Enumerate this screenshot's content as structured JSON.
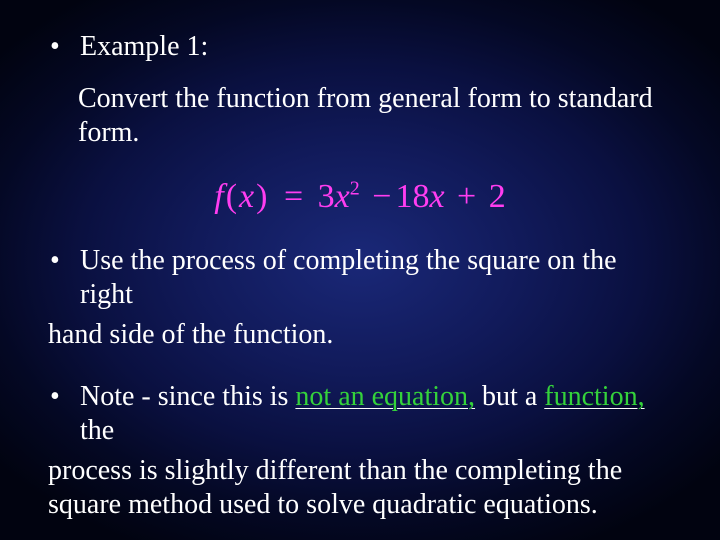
{
  "colors": {
    "background_center": "#1a2878",
    "background_edge": "#010310",
    "body_text": "#ffffff",
    "formula_text": "#ff3df0",
    "highlight_text": "#34d23b",
    "underline_color": "#ffffff"
  },
  "typography": {
    "body_fontsize_pt": 21,
    "formula_fontsize_pt": 26,
    "font_family": "Times New Roman"
  },
  "bullet1": {
    "label": "Example 1:",
    "sub": "Convert the function from general form to standard form."
  },
  "formula": {
    "lhs_f": "f",
    "lhs_open": "(",
    "lhs_x": "x",
    "lhs_close": ")",
    "eq": "=",
    "a": "3",
    "x1": "x",
    "exp": "2",
    "minus": "−",
    "b": "18",
    "x2": "x",
    "plus": "+",
    "c": "2"
  },
  "bullet2": {
    "line1": "Use the process of completing the square on the right",
    "line2": "hand side of the function."
  },
  "bullet3": {
    "pre": "Note - since this is ",
    "hl1": "not an equation,",
    "mid": " but a ",
    "hl2": "function,",
    "post1": " the",
    "line2": "process is slightly different than the completing the",
    "line3": "square method used to solve quadratic equations."
  }
}
